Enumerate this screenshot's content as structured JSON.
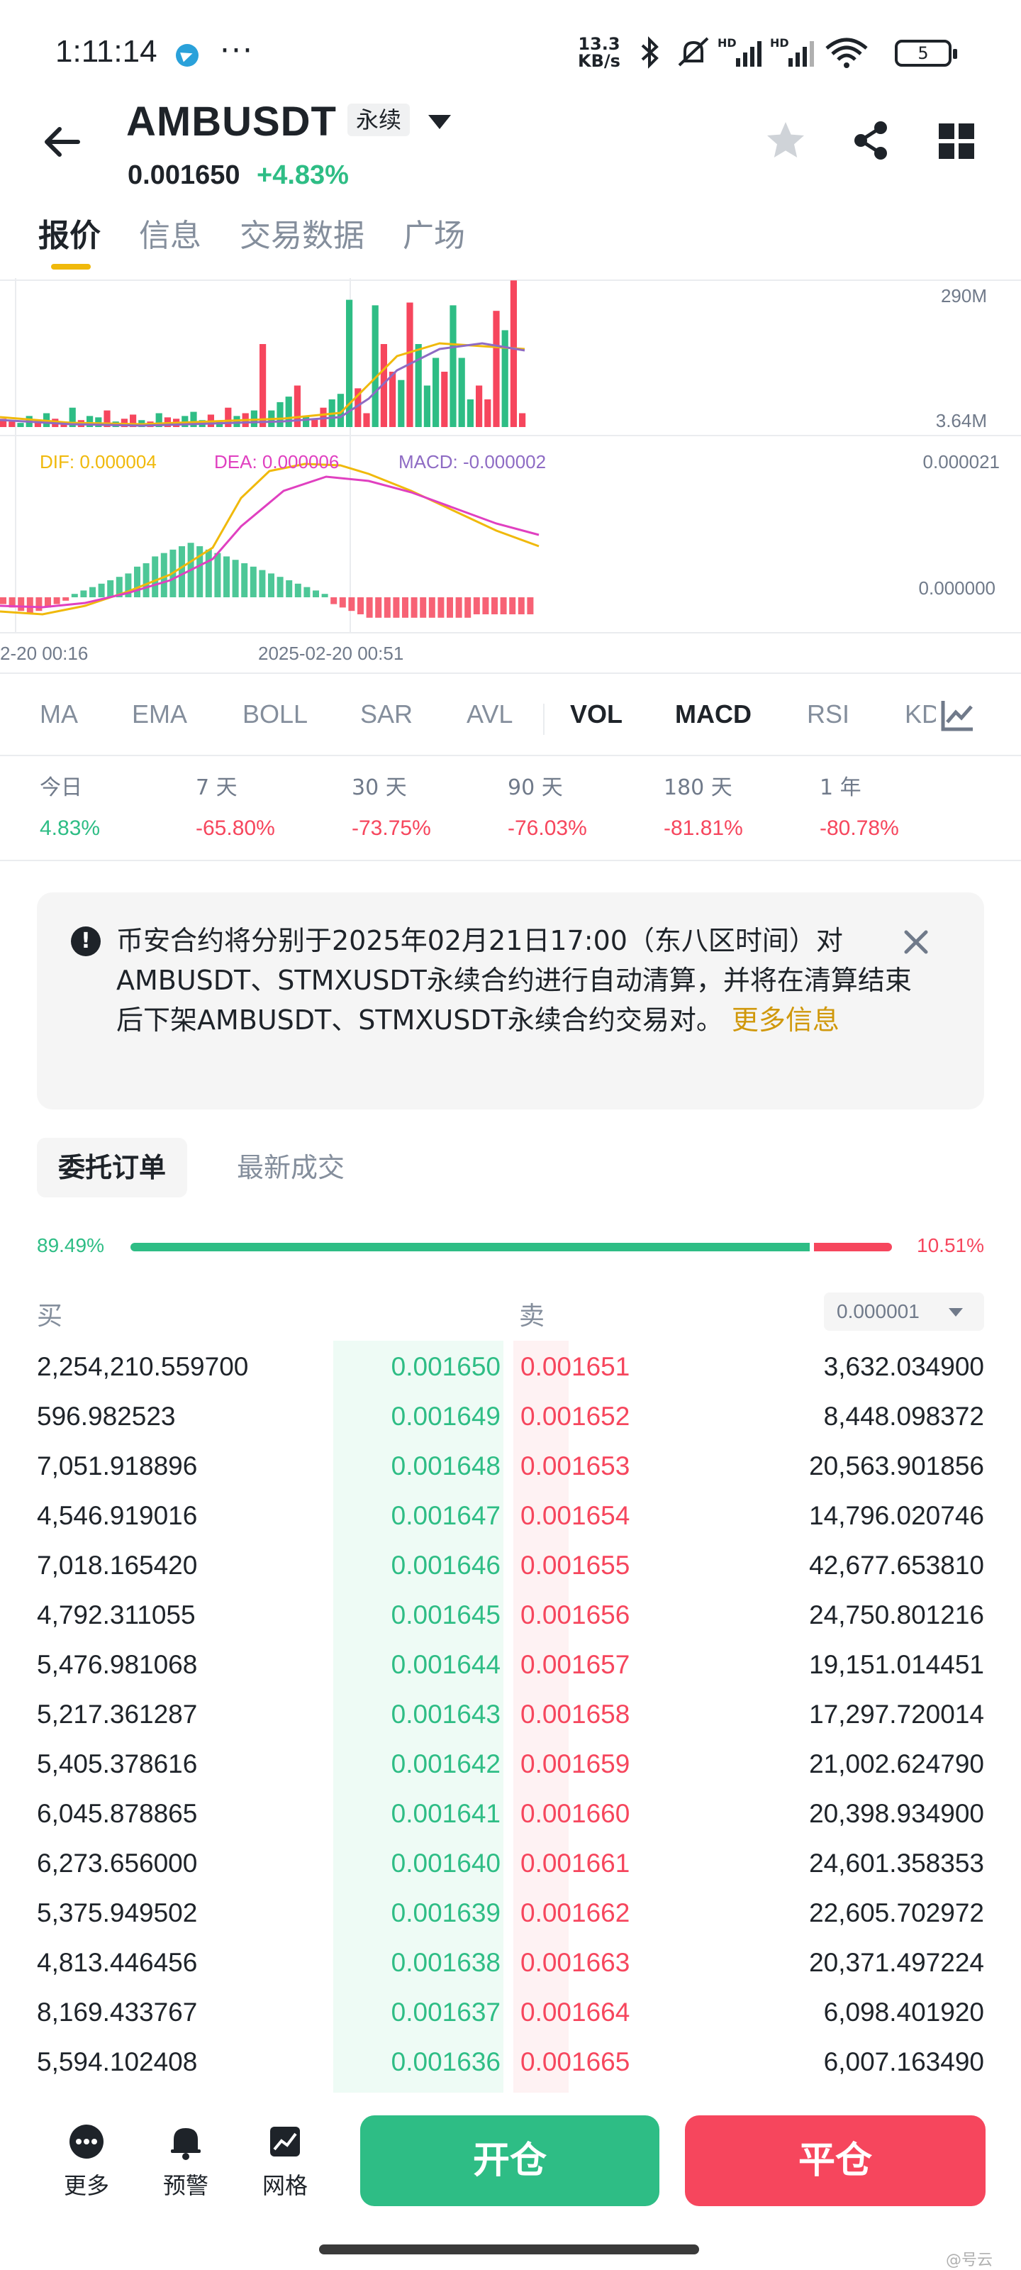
{
  "status_bar": {
    "time": "1:11:14",
    "net_speed_value": "13.3",
    "net_speed_unit": "KB/s",
    "battery": "5"
  },
  "header": {
    "symbol": "AMBUSDT",
    "contract_type": "永续",
    "last_price": "0.001650",
    "change_pct": "+4.83%"
  },
  "tabs": [
    "报价",
    "信息",
    "交易数据",
    "广场"
  ],
  "chart": {
    "vol_axis_top": "290M",
    "vol_axis_bottom": "3.64M",
    "dif_label": "DIF: 0.000004",
    "dea_label": "DEA: 0.000006",
    "macd_label": "MACD: -0.000002",
    "macd_axis_top": "0.000021",
    "macd_axis_zero": "0.000000",
    "time_left": "2-20 00:16",
    "time_mid": "2025-02-20 00:51",
    "colors": {
      "up": "#2ebd85",
      "down": "#f6465d",
      "dif": "#f0b90b",
      "dea": "#e040c0"
    }
  },
  "indicators": [
    "MA",
    "EMA",
    "BOLL",
    "SAR",
    "AVL",
    "VOL",
    "MACD",
    "RSI",
    "KD"
  ],
  "active_indicators": [
    "VOL",
    "MACD"
  ],
  "performance": [
    {
      "label": "今日",
      "value": "4.83%",
      "dir": "up"
    },
    {
      "label": "7 天",
      "value": "-65.80%",
      "dir": "down"
    },
    {
      "label": "30 天",
      "value": "-73.75%",
      "dir": "down"
    },
    {
      "label": "90 天",
      "value": "-76.03%",
      "dir": "down"
    },
    {
      "label": "180 天",
      "value": "-81.81%",
      "dir": "down"
    },
    {
      "label": "1 年",
      "value": "-80.78%",
      "dir": "down"
    }
  ],
  "notice": {
    "text": "币安合约将分别于2025年02月21日17:00（东八区时间）对AMBUSDT、STMXUSDT永续合约进行自动清算，并将在清算结束后下架AMBUSDT、STMXUSDT永续合约交易对。",
    "more_link": "更多信息"
  },
  "orderbook": {
    "tab_active": "委托订单",
    "tab_other": "最新成交",
    "buy_ratio_label": "89.49%",
    "sell_ratio_label": "10.51%",
    "buy_ratio": 0.8949,
    "buy_header": "买",
    "sell_header": "卖",
    "tick_size": "0.000001",
    "rows": [
      {
        "buy_qty": "2,254,210.559700",
        "buy_price": "0.001650",
        "sell_price": "0.001651",
        "sell_qty": "3,632.034900"
      },
      {
        "buy_qty": "596.982523",
        "buy_price": "0.001649",
        "sell_price": "0.001652",
        "sell_qty": "8,448.098372"
      },
      {
        "buy_qty": "7,051.918896",
        "buy_price": "0.001648",
        "sell_price": "0.001653",
        "sell_qty": "20,563.901856"
      },
      {
        "buy_qty": "4,546.919016",
        "buy_price": "0.001647",
        "sell_price": "0.001654",
        "sell_qty": "14,796.020746"
      },
      {
        "buy_qty": "7,018.165420",
        "buy_price": "0.001646",
        "sell_price": "0.001655",
        "sell_qty": "42,677.653810"
      },
      {
        "buy_qty": "4,792.311055",
        "buy_price": "0.001645",
        "sell_price": "0.001656",
        "sell_qty": "24,750.801216"
      },
      {
        "buy_qty": "5,476.981068",
        "buy_price": "0.001644",
        "sell_price": "0.001657",
        "sell_qty": "19,151.014451"
      },
      {
        "buy_qty": "5,217.361287",
        "buy_price": "0.001643",
        "sell_price": "0.001658",
        "sell_qty": "17,297.720014"
      },
      {
        "buy_qty": "5,405.378616",
        "buy_price": "0.001642",
        "sell_price": "0.001659",
        "sell_qty": "21,002.624790"
      },
      {
        "buy_qty": "6,045.878865",
        "buy_price": "0.001641",
        "sell_price": "0.001660",
        "sell_qty": "20,398.934900"
      },
      {
        "buy_qty": "6,273.656000",
        "buy_price": "0.001640",
        "sell_price": "0.001661",
        "sell_qty": "24,601.358353"
      },
      {
        "buy_qty": "5,375.949502",
        "buy_price": "0.001639",
        "sell_price": "0.001662",
        "sell_qty": "22,605.702972"
      },
      {
        "buy_qty": "4,813.446456",
        "buy_price": "0.001638",
        "sell_price": "0.001663",
        "sell_qty": "20,371.497224"
      },
      {
        "buy_qty": "8,169.433767",
        "buy_price": "0.001637",
        "sell_price": "0.001664",
        "sell_qty": "6,098.401920"
      },
      {
        "buy_qty": "5,594.102408",
        "buy_price": "0.001636",
        "sell_price": "0.001665",
        "sell_qty": "6,007.163490"
      }
    ]
  },
  "bottom_bar": {
    "more": "更多",
    "alert": "预警",
    "grid": "网格",
    "open": "开仓",
    "close": "平仓"
  },
  "watermark": "@号云"
}
